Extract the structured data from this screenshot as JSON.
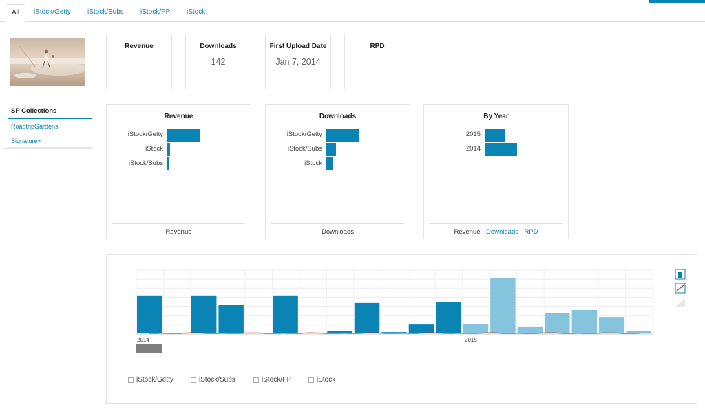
{
  "tabs": [
    "All",
    "iStock/Getty",
    "iStock/Subs",
    "iStock/PP",
    "iStock"
  ],
  "stats": {
    "revenue": {
      "title": "Revenue",
      "value": ""
    },
    "downloads": {
      "title": "Downloads",
      "value": "142"
    },
    "first_upload": {
      "title": "First Upload Date",
      "value": "Jan 7, 2014"
    },
    "rpd": {
      "title": "RPD",
      "value": ""
    }
  },
  "sidebar": {
    "heading": "SP Collections",
    "items": [
      "RoadtripGardens",
      "Signature+"
    ]
  },
  "colors": {
    "accent": "#0a84b4",
    "light_bar": "#86c4dd",
    "line": "#c0392b",
    "scrollbar": "#7f7f7f"
  },
  "revenue_chart": {
    "title": "Revenue",
    "footer": "Revenue",
    "rows": [
      {
        "label": "iStock/Getty",
        "value": 1.0
      },
      {
        "label": "iStock",
        "value": 0.08
      },
      {
        "label": "iStock/Subs",
        "value": 0.02
      }
    ]
  },
  "downloads_chart": {
    "title": "Downloads",
    "footer": "Downloads",
    "rows": [
      {
        "label": "iStock/Getty",
        "value": 1.0
      },
      {
        "label": "iStock/Subs",
        "value": 0.29
      },
      {
        "label": "iStock",
        "value": 0.21
      }
    ]
  },
  "year_chart": {
    "title": "By Year",
    "footer_static": "Revenue",
    "footer_sep1": " - ",
    "footer_link1": "Downloads",
    "footer_sep2": " - ",
    "footer_link2": "RPD",
    "rows": [
      {
        "label": "2015",
        "value": 0.62
      },
      {
        "label": "2014",
        "value": 1.0
      }
    ]
  },
  "timeline": {
    "labels": [
      "2014",
      "2015"
    ],
    "legend": [
      "iStock/Getty",
      "iStock/Subs",
      "iStock/PP",
      "iStock"
    ],
    "icons": [
      "bar-chart-icon",
      "line-chart-icon",
      "area-chart-icon"
    ],
    "bars": [
      {
        "value": 60,
        "light": false
      },
      {
        "value": 0,
        "light": false
      },
      {
        "value": 60,
        "light": false
      },
      {
        "value": 45,
        "light": false
      },
      {
        "value": 0,
        "light": false
      },
      {
        "value": 60,
        "light": false
      },
      {
        "value": 0,
        "light": false
      },
      {
        "value": 4,
        "light": false
      },
      {
        "value": 48,
        "light": false
      },
      {
        "value": 2,
        "light": false
      },
      {
        "value": 14,
        "light": false
      },
      {
        "value": 50,
        "light": false
      },
      {
        "value": 15,
        "light": true
      },
      {
        "value": 88,
        "light": true
      },
      {
        "value": 11,
        "light": true
      },
      {
        "value": 32,
        "light": true
      },
      {
        "value": 37,
        "light": true
      },
      {
        "value": 26,
        "light": true
      },
      {
        "value": 4,
        "light": true
      }
    ]
  }
}
